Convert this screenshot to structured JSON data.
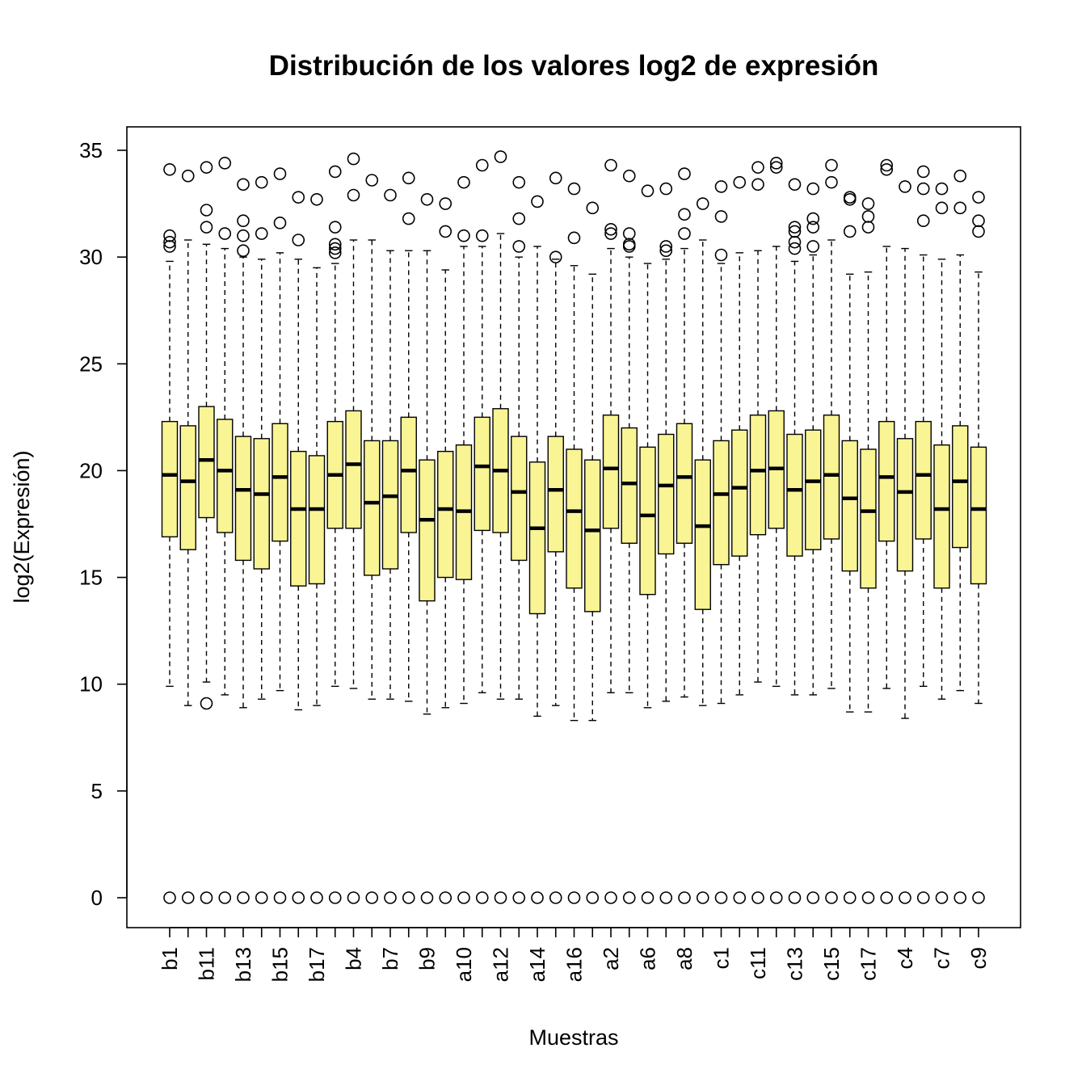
{
  "chart_data": {
    "type": "boxplot",
    "title": "Distribución de los valores log2 de expresión",
    "xlabel": "Muestras",
    "ylabel": "log2(Expresión)",
    "ylim": [
      0,
      35
    ],
    "yticks": [
      0,
      5,
      10,
      15,
      20,
      25,
      30,
      35
    ],
    "grid": false,
    "legend": "none",
    "colors": {
      "box_fill": "#F9F494",
      "box_stroke": "#000000",
      "median": "#000000"
    },
    "tick_labels": [
      "b1",
      "b11",
      "b13",
      "b15",
      "b17",
      "b4",
      "b7",
      "b9",
      "a10",
      "a12",
      "a14",
      "a16",
      "a2",
      "a6",
      "a8",
      "c1",
      "c11",
      "c13",
      "c15",
      "c17",
      "c4",
      "c7",
      "c9"
    ],
    "boxes": [
      {
        "label": "b1",
        "wlo": 9.9,
        "q1": 16.9,
        "med": 19.8,
        "q3": 22.3,
        "whi": 29.8,
        "outliers": [
          0,
          30.5,
          30.7,
          31.0,
          34.1
        ]
      },
      {
        "label": "",
        "wlo": 9.0,
        "q1": 16.3,
        "med": 19.5,
        "q3": 22.1,
        "whi": 30.8,
        "outliers": [
          0,
          33.8
        ]
      },
      {
        "label": "b11",
        "wlo": 10.1,
        "q1": 17.8,
        "med": 20.5,
        "q3": 23.0,
        "whi": 30.6,
        "outliers": [
          0,
          9.1,
          31.4,
          32.2,
          34.2
        ]
      },
      {
        "label": "",
        "wlo": 9.5,
        "q1": 17.1,
        "med": 20.0,
        "q3": 22.4,
        "whi": 30.4,
        "outliers": [
          0,
          31.1,
          34.4
        ]
      },
      {
        "label": "b13",
        "wlo": 8.9,
        "q1": 15.8,
        "med": 19.1,
        "q3": 21.6,
        "whi": 30.0,
        "outliers": [
          0,
          30.3,
          31.0,
          31.7,
          33.4
        ]
      },
      {
        "label": "",
        "wlo": 9.3,
        "q1": 15.4,
        "med": 18.9,
        "q3": 21.5,
        "whi": 29.9,
        "outliers": [
          0,
          31.1,
          33.5
        ]
      },
      {
        "label": "b15",
        "wlo": 9.7,
        "q1": 16.7,
        "med": 19.7,
        "q3": 22.2,
        "whi": 30.2,
        "outliers": [
          0,
          31.6,
          33.9
        ]
      },
      {
        "label": "",
        "wlo": 8.8,
        "q1": 14.6,
        "med": 18.2,
        "q3": 20.9,
        "whi": 29.9,
        "outliers": [
          0,
          30.8,
          32.8
        ]
      },
      {
        "label": "b17",
        "wlo": 9.0,
        "q1": 14.7,
        "med": 18.2,
        "q3": 20.7,
        "whi": 29.5,
        "outliers": [
          0,
          32.7
        ]
      },
      {
        "label": "",
        "wlo": 9.9,
        "q1": 17.3,
        "med": 19.8,
        "q3": 22.3,
        "whi": 29.7,
        "outliers": [
          0,
          30.2,
          30.4,
          30.6,
          31.4,
          34.0
        ]
      },
      {
        "label": "b4",
        "wlo": 9.8,
        "q1": 17.3,
        "med": 20.3,
        "q3": 22.8,
        "whi": 30.8,
        "outliers": [
          0,
          32.9,
          34.6
        ]
      },
      {
        "label": "",
        "wlo": 9.3,
        "q1": 15.1,
        "med": 18.5,
        "q3": 21.4,
        "whi": 30.8,
        "outliers": [
          0,
          33.6
        ]
      },
      {
        "label": "b7",
        "wlo": 9.3,
        "q1": 15.4,
        "med": 18.8,
        "q3": 21.4,
        "whi": 30.3,
        "outliers": [
          0,
          32.9
        ]
      },
      {
        "label": "",
        "wlo": 9.2,
        "q1": 17.1,
        "med": 20.0,
        "q3": 22.5,
        "whi": 30.3,
        "outliers": [
          0,
          31.8,
          33.7
        ]
      },
      {
        "label": "b9",
        "wlo": 8.6,
        "q1": 13.9,
        "med": 17.7,
        "q3": 20.5,
        "whi": 30.3,
        "outliers": [
          0,
          32.7
        ]
      },
      {
        "label": "",
        "wlo": 8.9,
        "q1": 15.0,
        "med": 18.2,
        "q3": 20.9,
        "whi": 29.4,
        "outliers": [
          0,
          31.2,
          32.5
        ]
      },
      {
        "label": "a10",
        "wlo": 9.1,
        "q1": 14.9,
        "med": 18.1,
        "q3": 21.2,
        "whi": 30.5,
        "outliers": [
          0,
          31.0,
          33.5
        ]
      },
      {
        "label": "",
        "wlo": 9.6,
        "q1": 17.2,
        "med": 20.2,
        "q3": 22.5,
        "whi": 30.5,
        "outliers": [
          0,
          31.0,
          34.3
        ]
      },
      {
        "label": "a12",
        "wlo": 9.3,
        "q1": 17.1,
        "med": 20.0,
        "q3": 22.9,
        "whi": 31.1,
        "outliers": [
          0,
          34.7
        ]
      },
      {
        "label": "",
        "wlo": 9.3,
        "q1": 15.8,
        "med": 19.0,
        "q3": 21.6,
        "whi": 30.0,
        "outliers": [
          0,
          30.5,
          31.8,
          33.5
        ]
      },
      {
        "label": "a14",
        "wlo": 8.5,
        "q1": 13.3,
        "med": 17.3,
        "q3": 20.4,
        "whi": 30.5,
        "outliers": [
          0,
          32.6
        ]
      },
      {
        "label": "",
        "wlo": 9.0,
        "q1": 16.2,
        "med": 19.1,
        "q3": 21.6,
        "whi": 29.9,
        "outliers": [
          0,
          30.0,
          33.7
        ]
      },
      {
        "label": "a16",
        "wlo": 8.3,
        "q1": 14.5,
        "med": 18.1,
        "q3": 21.0,
        "whi": 29.6,
        "outliers": [
          0,
          30.9,
          33.2
        ]
      },
      {
        "label": "",
        "wlo": 8.3,
        "q1": 13.4,
        "med": 17.2,
        "q3": 20.5,
        "whi": 29.2,
        "outliers": [
          0,
          32.3
        ]
      },
      {
        "label": "a2",
        "wlo": 9.6,
        "q1": 17.3,
        "med": 20.1,
        "q3": 22.6,
        "whi": 30.4,
        "outliers": [
          0,
          31.1,
          31.3,
          34.3
        ]
      },
      {
        "label": "",
        "wlo": 9.6,
        "q1": 16.6,
        "med": 19.4,
        "q3": 22.0,
        "whi": 30.0,
        "outliers": [
          0,
          30.5,
          30.6,
          31.1,
          33.8
        ]
      },
      {
        "label": "a6",
        "wlo": 8.9,
        "q1": 14.2,
        "med": 17.9,
        "q3": 21.1,
        "whi": 29.7,
        "outliers": [
          0,
          33.1
        ]
      },
      {
        "label": "",
        "wlo": 9.2,
        "q1": 16.1,
        "med": 19.3,
        "q3": 21.7,
        "whi": 29.9,
        "outliers": [
          0,
          30.3,
          30.5,
          33.2
        ]
      },
      {
        "label": "a8",
        "wlo": 9.4,
        "q1": 16.6,
        "med": 19.7,
        "q3": 22.2,
        "whi": 30.4,
        "outliers": [
          0,
          31.1,
          32.0,
          33.9
        ]
      },
      {
        "label": "",
        "wlo": 9.0,
        "q1": 13.5,
        "med": 17.4,
        "q3": 20.5,
        "whi": 30.8,
        "outliers": [
          0,
          32.5
        ]
      },
      {
        "label": "c1",
        "wlo": 9.1,
        "q1": 15.6,
        "med": 18.9,
        "q3": 21.4,
        "whi": 29.7,
        "outliers": [
          0,
          30.1,
          31.9,
          33.3
        ]
      },
      {
        "label": "",
        "wlo": 9.5,
        "q1": 16.0,
        "med": 19.2,
        "q3": 21.9,
        "whi": 30.2,
        "outliers": [
          0,
          33.5
        ]
      },
      {
        "label": "c11",
        "wlo": 10.1,
        "q1": 17.0,
        "med": 20.0,
        "q3": 22.6,
        "whi": 30.3,
        "outliers": [
          0,
          33.4,
          34.2
        ]
      },
      {
        "label": "",
        "wlo": 9.9,
        "q1": 17.3,
        "med": 20.1,
        "q3": 22.8,
        "whi": 30.5,
        "outliers": [
          0,
          34.2,
          34.4
        ]
      },
      {
        "label": "c13",
        "wlo": 9.5,
        "q1": 16.0,
        "med": 19.1,
        "q3": 21.7,
        "whi": 29.8,
        "outliers": [
          0,
          30.4,
          30.7,
          31.2,
          31.4,
          33.4
        ]
      },
      {
        "label": "",
        "wlo": 9.5,
        "q1": 16.3,
        "med": 19.5,
        "q3": 21.9,
        "whi": 30.1,
        "outliers": [
          0,
          30.5,
          31.4,
          31.8,
          33.2
        ]
      },
      {
        "label": "c15",
        "wlo": 9.8,
        "q1": 16.8,
        "med": 19.8,
        "q3": 22.6,
        "whi": 30.8,
        "outliers": [
          0,
          33.5,
          34.3
        ]
      },
      {
        "label": "",
        "wlo": 8.7,
        "q1": 15.3,
        "med": 18.7,
        "q3": 21.4,
        "whi": 29.2,
        "outliers": [
          0,
          31.2,
          32.7,
          32.8
        ]
      },
      {
        "label": "c17",
        "wlo": 8.7,
        "q1": 14.5,
        "med": 18.1,
        "q3": 21.0,
        "whi": 29.3,
        "outliers": [
          0,
          31.4,
          31.9,
          32.5
        ]
      },
      {
        "label": "",
        "wlo": 9.8,
        "q1": 16.7,
        "med": 19.7,
        "q3": 22.3,
        "whi": 30.5,
        "outliers": [
          0,
          34.1,
          34.3
        ]
      },
      {
        "label": "c4",
        "wlo": 8.4,
        "q1": 15.3,
        "med": 19.0,
        "q3": 21.5,
        "whi": 30.4,
        "outliers": [
          0,
          33.3
        ]
      },
      {
        "label": "",
        "wlo": 9.9,
        "q1": 16.8,
        "med": 19.8,
        "q3": 22.3,
        "whi": 30.1,
        "outliers": [
          0,
          31.7,
          33.2,
          34.0
        ]
      },
      {
        "label": "c7",
        "wlo": 9.3,
        "q1": 14.5,
        "med": 18.2,
        "q3": 21.2,
        "whi": 29.9,
        "outliers": [
          0,
          32.3,
          33.2
        ]
      },
      {
        "label": "",
        "wlo": 9.7,
        "q1": 16.4,
        "med": 19.5,
        "q3": 22.1,
        "whi": 30.1,
        "outliers": [
          0,
          32.3,
          33.8
        ]
      },
      {
        "label": "c9",
        "wlo": 9.1,
        "q1": 14.7,
        "med": 18.2,
        "q3": 21.1,
        "whi": 29.3,
        "outliers": [
          0,
          31.2,
          31.7,
          32.8
        ]
      }
    ]
  }
}
